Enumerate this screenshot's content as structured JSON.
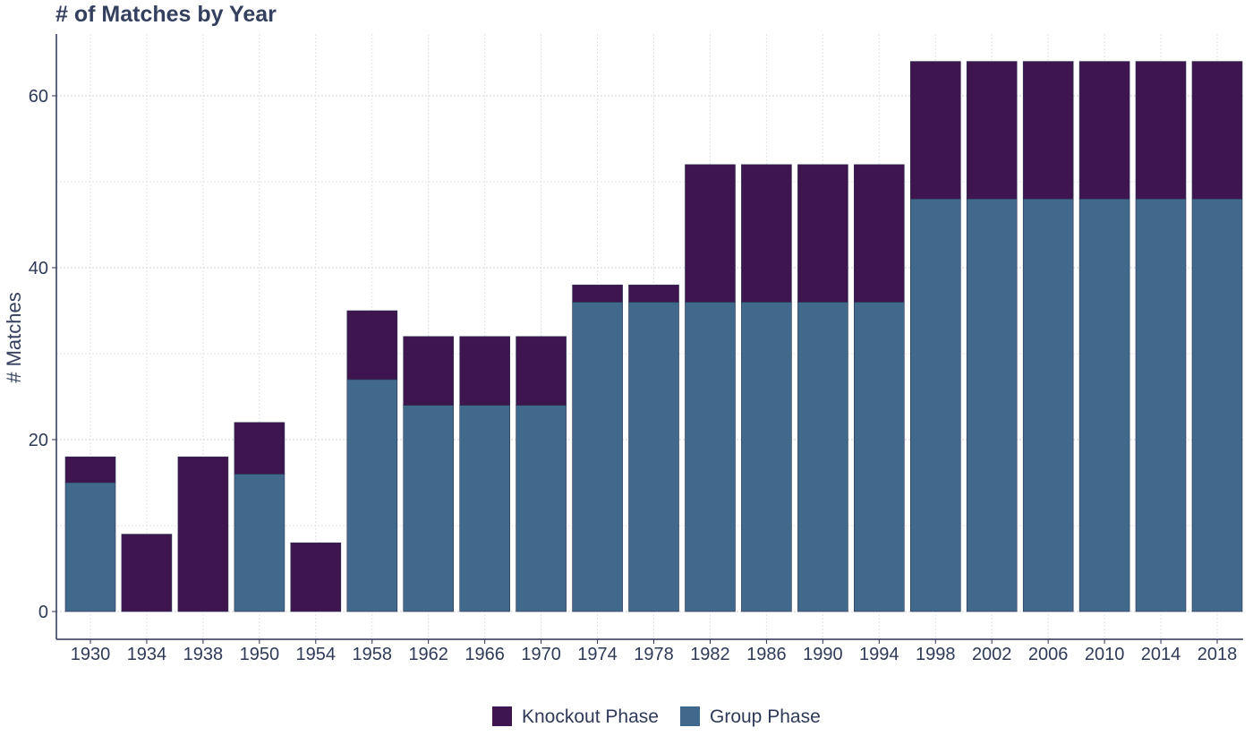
{
  "chart_data": {
    "type": "bar",
    "stacked": true,
    "title": "# of Matches by Year",
    "xlabel": "",
    "ylabel": "# Matches",
    "ylim": [
      0,
      67
    ],
    "yticks": [
      0,
      20,
      40,
      60
    ],
    "grid": true,
    "legend_position": "bottom",
    "categories": [
      "1930",
      "1934",
      "1938",
      "1950",
      "1954",
      "1958",
      "1962",
      "1966",
      "1970",
      "1974",
      "1978",
      "1982",
      "1986",
      "1990",
      "1994",
      "1998",
      "2002",
      "2006",
      "2010",
      "2014",
      "2018"
    ],
    "series": [
      {
        "name": "Group Phase",
        "color": "#41698c",
        "values": [
          15,
          0,
          0,
          16,
          0,
          27,
          24,
          24,
          24,
          36,
          36,
          36,
          36,
          36,
          36,
          48,
          48,
          48,
          48,
          48,
          48
        ]
      },
      {
        "name": "Knockout Phase",
        "color": "#3e154f",
        "values": [
          3,
          9,
          18,
          6,
          8,
          8,
          8,
          8,
          8,
          2,
          2,
          16,
          16,
          16,
          16,
          16,
          16,
          16,
          16,
          16,
          16
        ]
      }
    ],
    "legend_order": [
      "Knockout Phase",
      "Group Phase"
    ]
  }
}
